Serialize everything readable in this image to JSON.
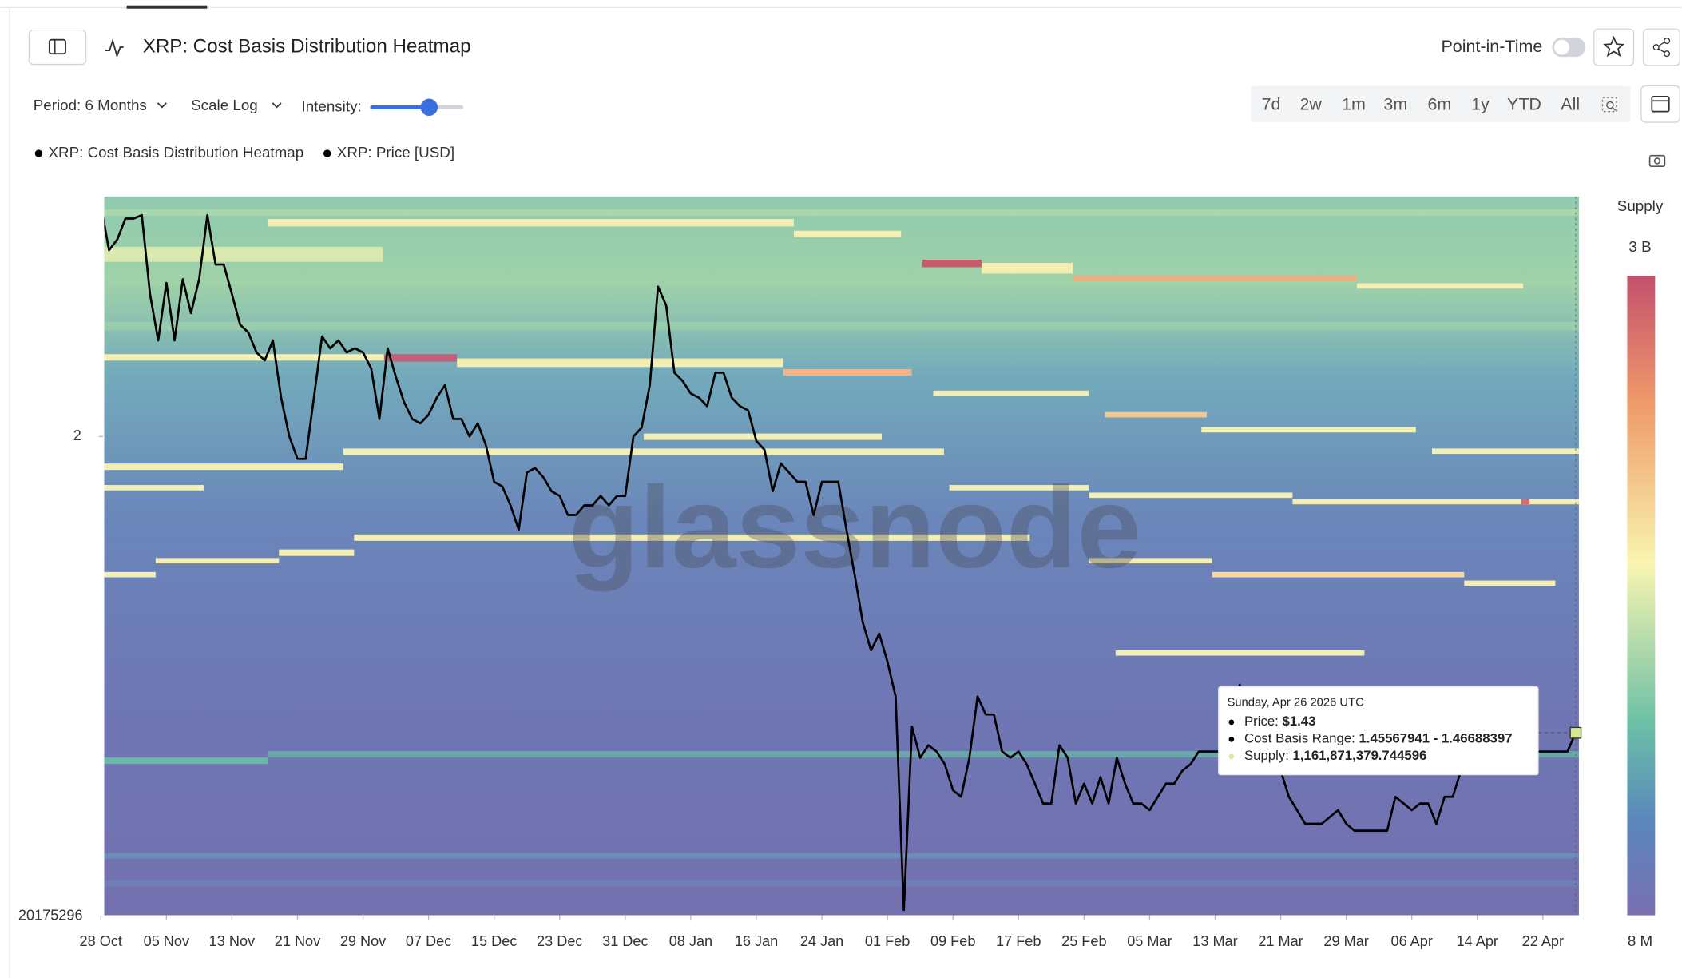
{
  "header": {
    "title": "XRP: Cost Basis Distribution Heatmap",
    "point_in_time": "Point-in-Time"
  },
  "controls": {
    "period": "Period: 6 Months",
    "scale": "Scale Log",
    "intensity": "Intensity:",
    "ranges": [
      "7d",
      "2w",
      "1m",
      "3m",
      "6m",
      "1y",
      "YTD",
      "All"
    ]
  },
  "colorbar": {
    "title": "Supply",
    "max_label": "3 B",
    "min_label": "8 M"
  },
  "tooltip": {
    "date": "Sunday, Apr 26 2026 UTC",
    "rows": [
      {
        "label": "Price: ",
        "value": "$1.43"
      },
      {
        "label": "Cost Basis Range: ",
        "value": "1.45567941 - 1.46688397"
      },
      {
        "label": "Supply: ",
        "value": "1,161,871,379.744596"
      }
    ]
  },
  "chart_data": {
    "type": "line",
    "heatmap": {
      "name": "XRP: Cost Basis Distribution Heatmap"
    },
    "yscale": "log",
    "ylim": [
      1.163,
      2.625
    ],
    "yticks": [
      2
    ],
    "y_bottom_label": "20175296",
    "xlim": [
      0.4,
      180.4
    ],
    "xticks": [
      {
        "value": 0,
        "label": "28 Oct"
      },
      {
        "value": 8,
        "label": "05 Nov"
      },
      {
        "value": 16,
        "label": "13 Nov"
      },
      {
        "value": 24,
        "label": "21 Nov"
      },
      {
        "value": 32,
        "label": "29 Nov"
      },
      {
        "value": 40,
        "label": "07 Dec"
      },
      {
        "value": 48,
        "label": "15 Dec"
      },
      {
        "value": 56,
        "label": "23 Dec"
      },
      {
        "value": 64,
        "label": "31 Dec"
      },
      {
        "value": 72,
        "label": "08 Jan"
      },
      {
        "value": 80,
        "label": "16 Jan"
      },
      {
        "value": 88,
        "label": "24 Jan"
      },
      {
        "value": 96,
        "label": "01 Feb"
      },
      {
        "value": 104,
        "label": "09 Feb"
      },
      {
        "value": 112,
        "label": "17 Feb"
      },
      {
        "value": 120,
        "label": "25 Feb"
      },
      {
        "value": 128,
        "label": "05 Mar"
      },
      {
        "value": 136,
        "label": "13 Mar"
      },
      {
        "value": 144,
        "label": "21 Mar"
      },
      {
        "value": 152,
        "label": "29 Mar"
      },
      {
        "value": 160,
        "label": "06 Apr"
      },
      {
        "value": 168,
        "label": "14 Apr"
      },
      {
        "value": 176,
        "label": "22 Apr"
      }
    ],
    "x": [
      0,
      1,
      2,
      3,
      4,
      5,
      6,
      7,
      8,
      9,
      10,
      11,
      12,
      13,
      14,
      15,
      16,
      17,
      18,
      19,
      20,
      21,
      22,
      23,
      24,
      25,
      26,
      27,
      28,
      29,
      30,
      31,
      32,
      33,
      34,
      35,
      36,
      37,
      38,
      39,
      40,
      41,
      42,
      43,
      44,
      45,
      46,
      47,
      48,
      49,
      50,
      51,
      52,
      53,
      54,
      55,
      56,
      57,
      58,
      59,
      60,
      61,
      62,
      63,
      64,
      65,
      66,
      67,
      68,
      69,
      70,
      71,
      72,
      73,
      74,
      75,
      76,
      77,
      78,
      79,
      80,
      81,
      82,
      83,
      84,
      85,
      86,
      87,
      88,
      89,
      90,
      91,
      92,
      93,
      94,
      95,
      96,
      97,
      98,
      99,
      100,
      101,
      102,
      103,
      104,
      105,
      106,
      107,
      108,
      109,
      110,
      111,
      112,
      113,
      114,
      115,
      116,
      117,
      118,
      119,
      120,
      121,
      122,
      123,
      124,
      125,
      126,
      127,
      128,
      129,
      130,
      131,
      132,
      133,
      134,
      135,
      136,
      137,
      138,
      139,
      140,
      141,
      142,
      143,
      144,
      145,
      146,
      147,
      148,
      149,
      150,
      151,
      152,
      153,
      154,
      155,
      156,
      157,
      158,
      159,
      160,
      161,
      162,
      163,
      164,
      165,
      166,
      167,
      168,
      169,
      170,
      171,
      172,
      173,
      174,
      175,
      176,
      177,
      178,
      179,
      180
    ],
    "series": [
      {
        "name": "XRP: Price [USD]",
        "color": "#000000",
        "values": [
          2.6,
          2.47,
          2.5,
          2.56,
          2.56,
          2.57,
          2.35,
          2.23,
          2.38,
          2.23,
          2.39,
          2.3,
          2.39,
          2.57,
          2.43,
          2.43,
          2.35,
          2.27,
          2.25,
          2.2,
          2.18,
          2.23,
          2.09,
          2.0,
          1.95,
          1.95,
          2.09,
          2.24,
          2.21,
          2.23,
          2.2,
          2.21,
          2.2,
          2.16,
          2.04,
          2.21,
          2.14,
          2.08,
          2.04,
          2.03,
          2.05,
          2.09,
          2.12,
          2.04,
          2.04,
          2.0,
          2.03,
          1.98,
          1.9,
          1.89,
          1.85,
          1.8,
          1.92,
          1.93,
          1.91,
          1.88,
          1.87,
          1.83,
          1.83,
          1.85,
          1.85,
          1.87,
          1.85,
          1.87,
          1.87,
          2.0,
          2.02,
          2.12,
          2.37,
          2.32,
          2.15,
          2.13,
          2.1,
          2.09,
          2.07,
          2.15,
          2.15,
          2.09,
          2.07,
          2.06,
          1.99,
          1.97,
          1.88,
          1.94,
          1.92,
          1.9,
          1.9,
          1.83,
          1.9,
          1.9,
          1.9,
          1.8,
          1.71,
          1.62,
          1.57,
          1.6,
          1.55,
          1.49,
          1.17,
          1.44,
          1.39,
          1.41,
          1.4,
          1.38,
          1.34,
          1.33,
          1.39,
          1.49,
          1.46,
          1.46,
          1.4,
          1.39,
          1.4,
          1.38,
          1.35,
          1.32,
          1.32,
          1.41,
          1.39,
          1.32,
          1.35,
          1.32,
          1.36,
          1.32,
          1.39,
          1.35,
          1.32,
          1.32,
          1.31,
          1.33,
          1.35,
          1.35,
          1.37,
          1.38,
          1.4,
          1.4,
          1.4,
          1.4,
          1.45,
          1.51,
          1.39,
          1.38,
          1.37,
          1.37,
          1.37,
          1.33,
          1.31,
          1.29,
          1.29,
          1.29,
          1.3,
          1.31,
          1.29,
          1.28,
          1.28,
          1.28,
          1.28,
          1.28,
          1.33,
          1.32,
          1.31,
          1.32,
          1.32,
          1.29,
          1.33,
          1.33,
          1.37,
          1.4,
          1.4,
          1.4,
          1.37,
          1.4,
          1.4,
          1.4,
          1.41,
          1.4,
          1.4,
          1.4,
          1.4,
          1.4,
          1.43
        ]
      }
    ]
  }
}
